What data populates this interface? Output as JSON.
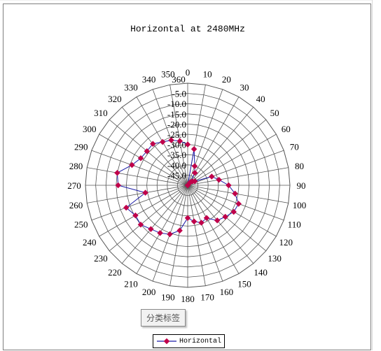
{
  "chart_data": {
    "type": "radar",
    "title": "Horizontal at 2480MHz",
    "angle_labels": [
      "0",
      "10",
      "20",
      "30",
      "40",
      "50",
      "60",
      "70",
      "80",
      "90",
      "100",
      "110",
      "120",
      "130",
      "140",
      "150",
      "160",
      "170",
      "180",
      "190",
      "200",
      "210",
      "220",
      "230",
      "240",
      "250",
      "260",
      "270",
      "280",
      "290",
      "300",
      "310",
      "320",
      "330",
      "340",
      "350",
      "360"
    ],
    "radial_labels": [
      "-5.0",
      "-10.0",
      "-15.0",
      "-20.0",
      "-25.0",
      "-30.0",
      "-35.0",
      "-40.0",
      "-45.0"
    ],
    "rlim": [
      -50,
      0
    ],
    "series": [
      {
        "name": "Horizontal",
        "color": "#1a1aa6",
        "marker_color": "#c0004a",
        "values": [
          {
            "angle": 0,
            "value": -50
          },
          {
            "angle": 10,
            "value": -32
          },
          {
            "angle": 20,
            "value": -40
          },
          {
            "angle": 30,
            "value": -43
          },
          {
            "angle": 40,
            "value": -48
          },
          {
            "angle": 50,
            "value": -47
          },
          {
            "angle": 60,
            "value": -46
          },
          {
            "angle": 70,
            "value": -37.5
          },
          {
            "angle": 80,
            "value": -34.5
          },
          {
            "angle": 90,
            "value": -30
          },
          {
            "angle": 100,
            "value": -26.5
          },
          {
            "angle": 110,
            "value": -23.5
          },
          {
            "angle": 120,
            "value": -24
          },
          {
            "angle": 130,
            "value": -26
          },
          {
            "angle": 140,
            "value": -27.5
          },
          {
            "angle": 150,
            "value": -31.5
          },
          {
            "angle": 160,
            "value": -30.5
          },
          {
            "angle": 170,
            "value": -32
          },
          {
            "angle": 180,
            "value": -34
          },
          {
            "angle": 190,
            "value": -27.5
          },
          {
            "angle": 200,
            "value": -24.5
          },
          {
            "angle": 210,
            "value": -23
          },
          {
            "angle": 220,
            "value": -22
          },
          {
            "angle": 230,
            "value": -20
          },
          {
            "angle": 240,
            "value": -20.5
          },
          {
            "angle": 250,
            "value": -18
          },
          {
            "angle": 260,
            "value": -29
          },
          {
            "angle": 270,
            "value": -16
          },
          {
            "angle": 280,
            "value": -15
          },
          {
            "angle": 290,
            "value": -21
          },
          {
            "angle": 300,
            "value": -23.5
          },
          {
            "angle": 310,
            "value": -24
          },
          {
            "angle": 320,
            "value": -23.5
          },
          {
            "angle": 330,
            "value": -25.5
          },
          {
            "angle": 340,
            "value": -26.5
          },
          {
            "angle": 350,
            "value": -28
          },
          {
            "angle": 360,
            "value": -30
          }
        ]
      }
    ],
    "legend": "bottom"
  },
  "tooltip": {
    "text": "分类标签"
  },
  "legend": {
    "label": "Horizontal"
  }
}
